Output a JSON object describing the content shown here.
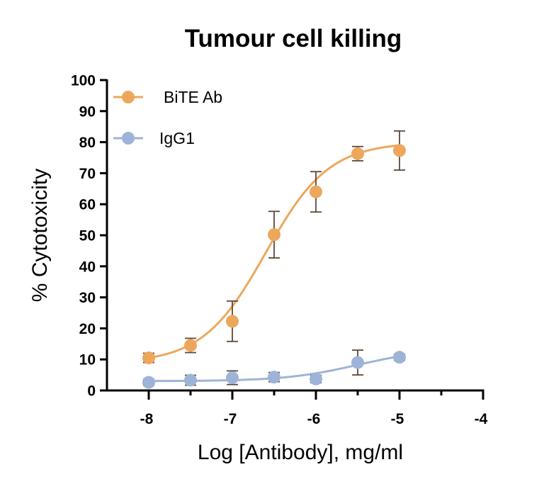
{
  "chart_data": {
    "type": "scatter",
    "title": "Tumour cell killing",
    "xlabel": "Log [Antibody], mg/ml",
    "ylabel": "% Cytotoxicity",
    "xlim": [
      -8.5,
      -4
    ],
    "ylim": [
      0,
      100
    ],
    "x_ticks": [
      -8,
      -7,
      -6,
      -5,
      -4
    ],
    "x_tick_labels": [
      "-8",
      "-7",
      "-6",
      "-5",
      "-4"
    ],
    "x_minor_ticks": [
      -7.5,
      -6.5,
      -5.5,
      -4.5
    ],
    "y_ticks": [
      0,
      10,
      20,
      30,
      40,
      50,
      60,
      70,
      80,
      90,
      100
    ],
    "y_tick_labels": [
      "0",
      "10",
      "20",
      "30",
      "40",
      "50",
      "60",
      "70",
      "80",
      "90",
      "100"
    ],
    "legend_position": "top-left",
    "series": [
      {
        "name": "BiTE Ab",
        "color": "#EDA75C",
        "x": [
          -8,
          -7.5,
          -7,
          -6.5,
          -6,
          -5.5,
          -5
        ],
        "y": [
          10.5,
          14.5,
          22.3,
          50.2,
          64,
          76.3,
          77.3
        ],
        "err": [
          1.5,
          2.3,
          6.5,
          7.5,
          6.5,
          2.3,
          6.3
        ],
        "fit": {
          "bottom": 8.8,
          "top": 80,
          "logEC50": -6.6,
          "hill": 1.15
        }
      },
      {
        "name": "IgG1",
        "color": "#9DB4D8",
        "x": [
          -8,
          -7.5,
          -7,
          -6.5,
          -6,
          -5.5,
          -5
        ],
        "y": [
          2.6,
          3.3,
          4.1,
          4.3,
          3.7,
          9,
          10.7
        ],
        "err": [
          1.0,
          1.6,
          2.2,
          1.5,
          1.2,
          4.0,
          1.0
        ],
        "fit": {
          "bottom": 3.0,
          "top": 13.5,
          "logEC50": -5.5,
          "hill": 1.0
        }
      }
    ]
  }
}
